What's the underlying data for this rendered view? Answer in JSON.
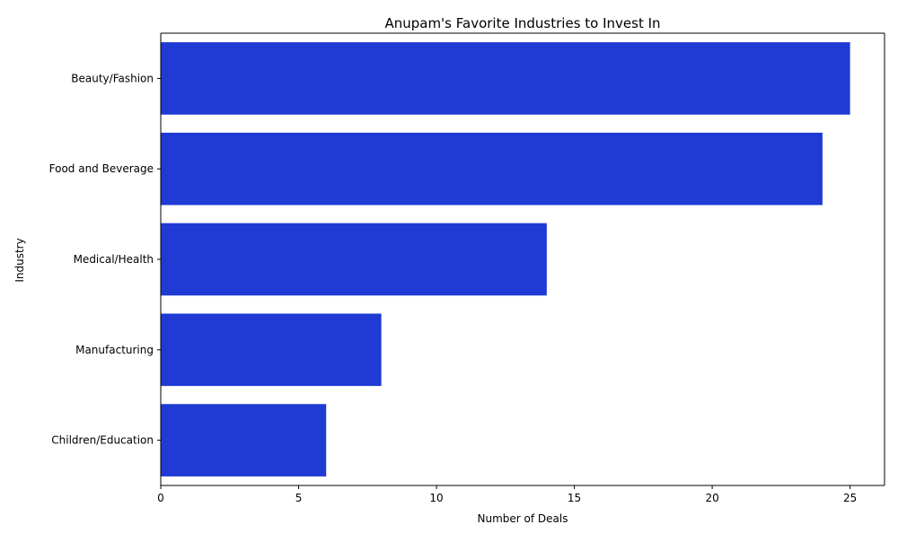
{
  "chart_data": {
    "type": "bar",
    "orientation": "horizontal",
    "title": "Anupam's Favorite Industries to Invest In",
    "xlabel": "Number of Deals",
    "ylabel": "Industry",
    "categories": [
      "Beauty/Fashion",
      "Food and Beverage",
      "Medical/Health",
      "Manufacturing",
      "Children/Education"
    ],
    "values": [
      25,
      24,
      14,
      8,
      6
    ],
    "xlim": [
      0,
      26.25
    ],
    "xticks": [
      0,
      5,
      10,
      15,
      20,
      25
    ],
    "xtick_labels": [
      "0",
      "5",
      "10",
      "15",
      "20",
      "25"
    ],
    "grid": false,
    "bar_color": "#1f3bd4"
  }
}
